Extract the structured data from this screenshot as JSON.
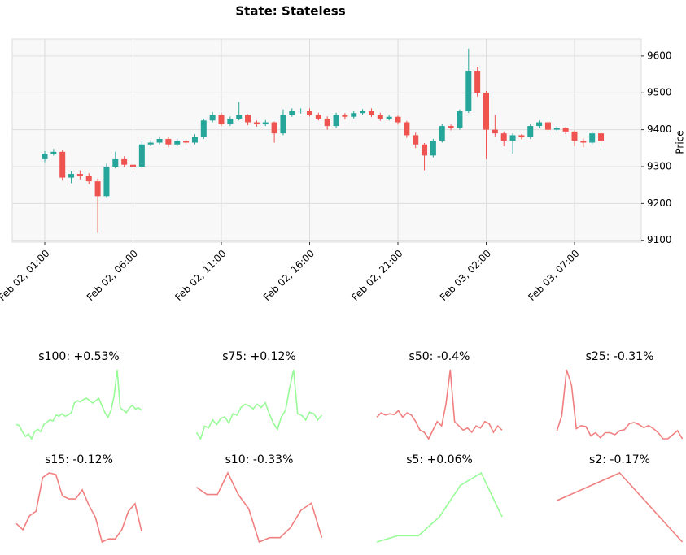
{
  "chart_data": [
    {
      "type": "candlestick",
      "title": "State: Stateless",
      "y_label": "Price",
      "up_color": "#26a69a",
      "down_color": "#ef5350",
      "x": [
        "Feb 02, 01:00",
        "Feb 02, 01:30",
        "Feb 02, 02:00",
        "Feb 02, 02:30",
        "Feb 02, 03:00",
        "Feb 02, 03:30",
        "Feb 02, 04:00",
        "Feb 02, 04:30",
        "Feb 02, 05:00",
        "Feb 02, 05:30",
        "Feb 02, 06:00",
        "Feb 02, 06:30",
        "Feb 02, 07:00",
        "Feb 02, 07:30",
        "Feb 02, 08:00",
        "Feb 02, 08:30",
        "Feb 02, 09:00",
        "Feb 02, 09:30",
        "Feb 02, 10:00",
        "Feb 02, 10:30",
        "Feb 02, 11:00",
        "Feb 02, 11:30",
        "Feb 02, 12:00",
        "Feb 02, 12:30",
        "Feb 02, 13:00",
        "Feb 02, 13:30",
        "Feb 02, 14:00",
        "Feb 02, 14:30",
        "Feb 02, 15:00",
        "Feb 02, 15:30",
        "Feb 02, 16:00",
        "Feb 02, 16:30",
        "Feb 02, 17:00",
        "Feb 02, 17:30",
        "Feb 02, 18:00",
        "Feb 02, 18:30",
        "Feb 02, 19:00",
        "Feb 02, 19:30",
        "Feb 02, 20:00",
        "Feb 02, 20:30",
        "Feb 02, 21:00",
        "Feb 02, 21:30",
        "Feb 02, 22:00",
        "Feb 02, 22:30",
        "Feb 02, 23:00",
        "Feb 02, 23:30",
        "Feb 03, 00:00",
        "Feb 03, 00:30",
        "Feb 03, 01:00",
        "Feb 03, 01:30",
        "Feb 03, 02:00",
        "Feb 03, 02:30",
        "Feb 03, 03:00",
        "Feb 03, 03:30",
        "Feb 03, 04:00",
        "Feb 03, 04:30",
        "Feb 03, 05:00",
        "Feb 03, 05:30",
        "Feb 03, 06:00",
        "Feb 03, 06:30",
        "Feb 03, 07:00",
        "Feb 03, 07:30",
        "Feb 03, 08:00",
        "Feb 03, 08:30"
      ],
      "open": [
        9320,
        9335,
        9340,
        9270,
        9280,
        9275,
        9260,
        9220,
        9300,
        9320,
        9305,
        9300,
        9360,
        9365,
        9375,
        9360,
        9370,
        9365,
        9380,
        9425,
        9440,
        9415,
        9430,
        9440,
        9420,
        9415,
        9420,
        9390,
        9440,
        9450,
        9452,
        9440,
        9430,
        9410,
        9440,
        9435,
        9445,
        9450,
        9440,
        9430,
        9435,
        9420,
        9385,
        9360,
        9330,
        9370,
        9410,
        9405,
        9450,
        9560,
        9500,
        9400,
        9390,
        9370,
        9385,
        9380,
        9410,
        9420,
        9400,
        9405,
        9395,
        9370,
        9365,
        9390
      ],
      "high": [
        9342,
        9348,
        9345,
        9288,
        9290,
        9282,
        9268,
        9308,
        9340,
        9328,
        9310,
        9368,
        9372,
        9382,
        9380,
        9376,
        9374,
        9388,
        9430,
        9448,
        9446,
        9436,
        9475,
        9442,
        9425,
        9426,
        9422,
        9455,
        9458,
        9458,
        9458,
        9446,
        9436,
        9446,
        9445,
        9450,
        9456,
        9458,
        9446,
        9440,
        9438,
        9424,
        9392,
        9364,
        9375,
        9416,
        9414,
        9455,
        9620,
        9570,
        9505,
        9440,
        9395,
        9390,
        9388,
        9415,
        9425,
        9422,
        9410,
        9408,
        9398,
        9376,
        9395,
        9394
      ],
      "low": [
        9312,
        9330,
        9262,
        9255,
        9265,
        9252,
        9120,
        9215,
        9295,
        9298,
        9292,
        9296,
        9355,
        9360,
        9352,
        9355,
        9360,
        9360,
        9375,
        9420,
        9410,
        9410,
        9425,
        9412,
        9408,
        9410,
        9365,
        9385,
        9435,
        9444,
        9436,
        9425,
        9400,
        9405,
        9428,
        9430,
        9440,
        9434,
        9424,
        9425,
        9414,
        9378,
        9350,
        9290,
        9325,
        9365,
        9398,
        9400,
        9445,
        9490,
        9320,
        9382,
        9355,
        9335,
        9374,
        9375,
        9404,
        9395,
        9396,
        9388,
        9355,
        9352,
        9360,
        9360
      ],
      "close": [
        9335,
        9340,
        9270,
        9280,
        9275,
        9260,
        9220,
        9300,
        9320,
        9305,
        9300,
        9360,
        9365,
        9375,
        9360,
        9370,
        9365,
        9380,
        9425,
        9440,
        9415,
        9430,
        9440,
        9420,
        9415,
        9420,
        9390,
        9440,
        9450,
        9452,
        9440,
        9430,
        9410,
        9440,
        9435,
        9445,
        9450,
        9440,
        9430,
        9435,
        9420,
        9385,
        9360,
        9330,
        9370,
        9410,
        9405,
        9450,
        9560,
        9500,
        9400,
        9390,
        9370,
        9385,
        9380,
        9410,
        9420,
        9400,
        9405,
        9395,
        9370,
        9365,
        9390,
        9370
      ],
      "xticks": [
        "Feb 02, 01:00",
        "Feb 02, 06:00",
        "Feb 02, 11:00",
        "Feb 02, 16:00",
        "Feb 02, 21:00",
        "Feb 03, 02:00",
        "Feb 03, 07:00"
      ],
      "ylim": [
        9095,
        9646
      ],
      "yticks": [
        9100,
        9200,
        9300,
        9400,
        9500,
        9600
      ],
      "grid": true
    },
    {
      "type": "line",
      "title": "s100: +0.53%",
      "color": "#98fb98",
      "values": [
        9330,
        9325,
        9300,
        9280,
        9290,
        9270,
        9300,
        9310,
        9300,
        9330,
        9340,
        9350,
        9345,
        9370,
        9365,
        9375,
        9365,
        9370,
        9380,
        9420,
        9430,
        9425,
        9435,
        9440,
        9430,
        9420,
        9430,
        9440,
        9410,
        9380,
        9360,
        9390,
        9450,
        9560,
        9400,
        9390,
        9380,
        9400,
        9410,
        9395,
        9400,
        9390
      ]
    },
    {
      "type": "line",
      "title": "s75: +0.12%",
      "color": "#98fb98",
      "values": [
        9320,
        9300,
        9340,
        9335,
        9360,
        9345,
        9365,
        9370,
        9350,
        9380,
        9375,
        9400,
        9410,
        9405,
        9395,
        9410,
        9400,
        9415,
        9380,
        9350,
        9330,
        9370,
        9390,
        9460,
        9520,
        9380,
        9375,
        9360,
        9385,
        9380,
        9360,
        9375
      ]
    },
    {
      "type": "line",
      "title": "s50: -0.4%",
      "color": "#f08080",
      "values": [
        9430,
        9440,
        9435,
        9438,
        9436,
        9445,
        9430,
        9440,
        9435,
        9420,
        9400,
        9395,
        9380,
        9400,
        9420,
        9410,
        9460,
        9540,
        9420,
        9410,
        9400,
        9405,
        9395,
        9410,
        9405,
        9420,
        9415,
        9395,
        9410,
        9400
      ]
    },
    {
      "type": "line",
      "title": "s25: -0.31%",
      "color": "#f08080",
      "values": [
        9380,
        9395,
        9440,
        9425,
        9382,
        9385,
        9384,
        9375,
        9378,
        9373,
        9378,
        9378,
        9376,
        9380,
        9381,
        9387,
        9388,
        9386,
        9383,
        9385,
        9382,
        9378,
        9372,
        9372,
        9376,
        9380,
        9372
      ]
    },
    {
      "type": "line",
      "title": "s15: -0.12%",
      "color": "#f08080",
      "values": [
        9380,
        9376,
        9385,
        9388,
        9410,
        9413,
        9412,
        9398,
        9396,
        9396,
        9402,
        9392,
        9384,
        9368,
        9370,
        9370,
        9376,
        9388,
        9393,
        9375
      ]
    },
    {
      "type": "line",
      "title": "s10: -0.33%",
      "color": "#f08080",
      "values": [
        9410,
        9405,
        9405,
        9420,
        9405,
        9395,
        9372,
        9375,
        9375,
        9382,
        9394,
        9399,
        9375
      ]
    },
    {
      "type": "line",
      "title": "s5: +0.06%",
      "color": "#98fb98",
      "values": [
        9370,
        9375,
        9375,
        9390,
        9415,
        9425,
        9390
      ]
    },
    {
      "type": "line",
      "title": "s2: -0.17%",
      "color": "#f08080",
      "values": [
        9400,
        9420,
        9370
      ]
    }
  ]
}
